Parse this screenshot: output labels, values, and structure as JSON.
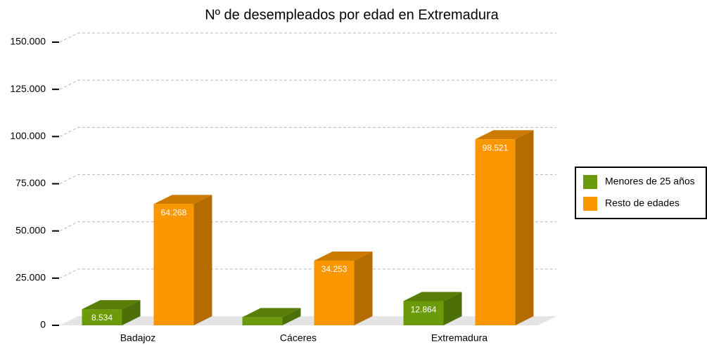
{
  "chart_data": {
    "type": "bar3d",
    "title": "Nº de desempleados por edad en Extremadura",
    "categories": [
      "Badajoz",
      "Cáceres",
      "Extremadura"
    ],
    "series": [
      {
        "name": "Menores de 25 años",
        "color": "#6b9a0a",
        "values": [
          8534,
          4330,
          12864
        ],
        "value_labels": [
          "8.534",
          null,
          "12.864"
        ]
      },
      {
        "name": "Resto de edades",
        "color": "#fa9600",
        "values": [
          64268,
          34253,
          98521
        ],
        "value_labels": [
          "64.268",
          "34.253",
          "98.521"
        ]
      }
    ],
    "ylim": [
      0,
      150000
    ],
    "yticks": [
      0,
      {
        "value": 25000,
        "label": "25.000"
      },
      {
        "value": 50000,
        "label": "50.000"
      },
      {
        "value": 75000,
        "label": "75.000"
      },
      {
        "value": 100000,
        "label": "100.000"
      },
      {
        "value": 125000,
        "label": "125.000"
      },
      {
        "value": 150000,
        "label": "150.000"
      }
    ],
    "grid": true,
    "legend": "right"
  }
}
